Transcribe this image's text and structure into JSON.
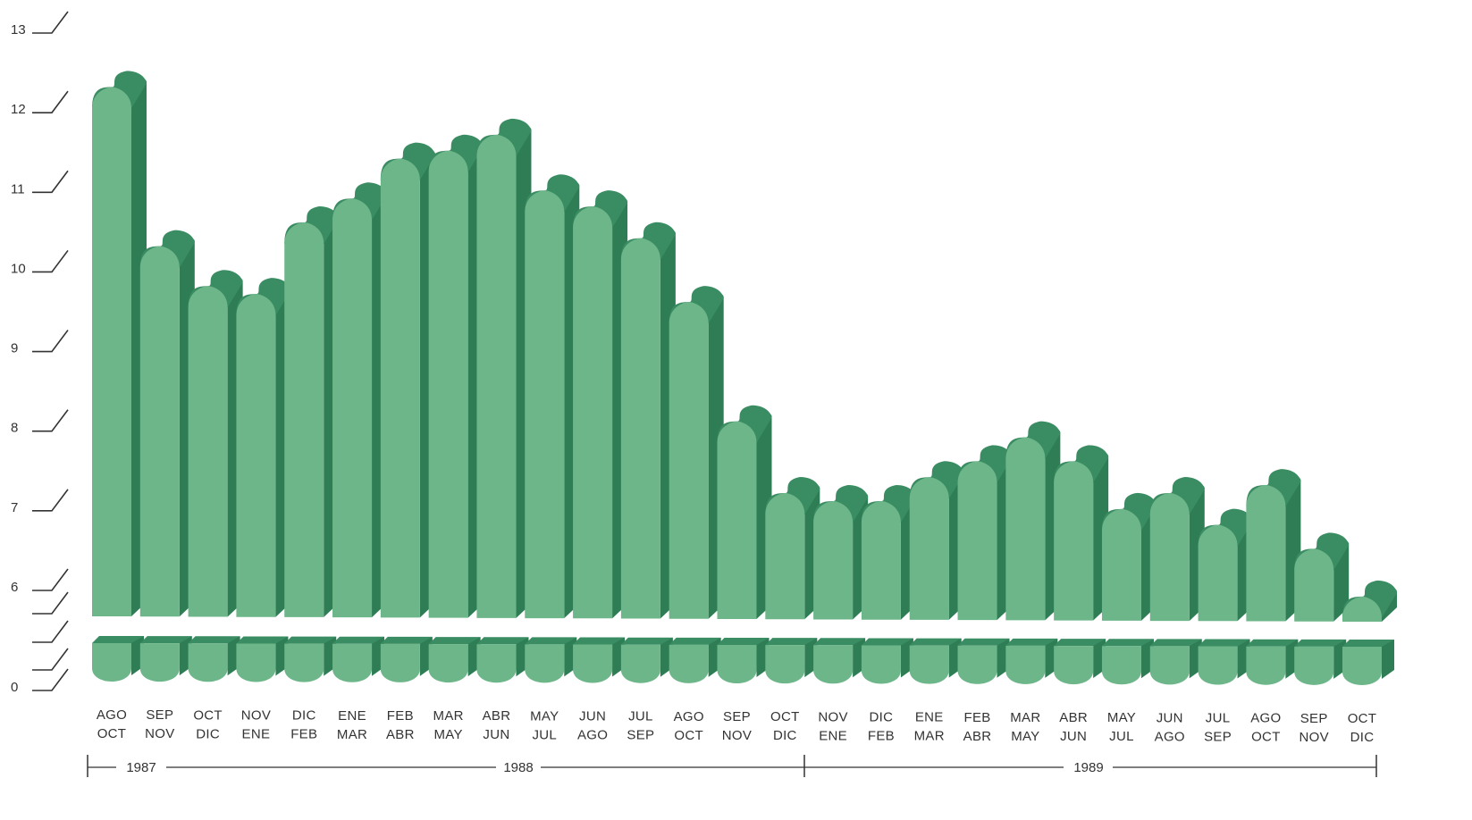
{
  "chart_data": {
    "type": "bar",
    "title": "",
    "xlabel": "",
    "ylabel": "",
    "ylim": [
      5.6,
      13
    ],
    "y_axis_break": true,
    "y_ticks": [
      "0",
      "6",
      "7",
      "8",
      "9",
      "10",
      "11",
      "12",
      "13"
    ],
    "categories": [
      {
        "top": "AGO",
        "bottom": "OCT"
      },
      {
        "top": "SEP",
        "bottom": "NOV"
      },
      {
        "top": "OCT",
        "bottom": "DIC"
      },
      {
        "top": "NOV",
        "bottom": "ENE"
      },
      {
        "top": "DIC",
        "bottom": "FEB"
      },
      {
        "top": "ENE",
        "bottom": "MAR"
      },
      {
        "top": "FEB",
        "bottom": "ABR"
      },
      {
        "top": "MAR",
        "bottom": "MAY"
      },
      {
        "top": "ABR",
        "bottom": "JUN"
      },
      {
        "top": "MAY",
        "bottom": "JUL"
      },
      {
        "top": "JUN",
        "bottom": "AGO"
      },
      {
        "top": "JUL",
        "bottom": "SEP"
      },
      {
        "top": "AGO",
        "bottom": "OCT"
      },
      {
        "top": "SEP",
        "bottom": "NOV"
      },
      {
        "top": "OCT",
        "bottom": "DIC"
      },
      {
        "top": "NOV",
        "bottom": "ENE"
      },
      {
        "top": "DIC",
        "bottom": "FEB"
      },
      {
        "top": "ENE",
        "bottom": "MAR"
      },
      {
        "top": "FEB",
        "bottom": "ABR"
      },
      {
        "top": "MAR",
        "bottom": "MAY"
      },
      {
        "top": "ABR",
        "bottom": "JUN"
      },
      {
        "top": "MAY",
        "bottom": "JUL"
      },
      {
        "top": "JUN",
        "bottom": "AGO"
      },
      {
        "top": "JUL",
        "bottom": "SEP"
      },
      {
        "top": "AGO",
        "bottom": "OCT"
      },
      {
        "top": "SEP",
        "bottom": "NOV"
      },
      {
        "top": "OCT",
        "bottom": "DIC"
      }
    ],
    "values": [
      12.3,
      10.3,
      9.8,
      9.7,
      10.6,
      10.9,
      11.4,
      11.5,
      11.7,
      11.0,
      10.8,
      10.4,
      9.6,
      8.1,
      7.2,
      7.1,
      7.1,
      7.4,
      7.6,
      7.9,
      7.6,
      7.0,
      7.2,
      6.8,
      7.3,
      6.5,
      5.9
    ],
    "years": [
      "1987",
      "1988",
      "1989"
    ],
    "colors": {
      "bar_front": "#6db689",
      "bar_side": "#2e7d55",
      "bar_top": "#3a8c62",
      "text": "#333333",
      "axis": "#333333"
    }
  }
}
